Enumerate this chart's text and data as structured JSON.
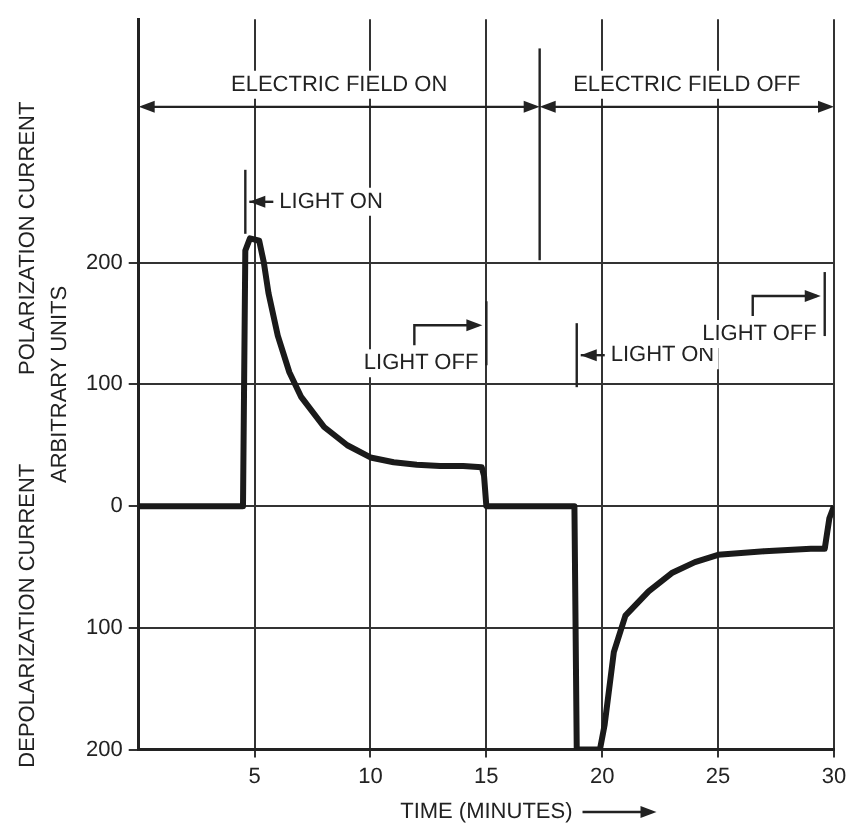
{
  "chart_data": {
    "type": "line",
    "xlabel": "TIME (MINUTES)",
    "ylabel": "ARBITRARY UNITS",
    "annotations": [
      "POLARIZATION CURRENT",
      "DEPOLARIZATION CURRENT",
      "ELECTRIC FIELD ON",
      "ELECTRIC FIELD OFF"
    ],
    "ref_lines": [
      {
        "axis": "x",
        "value": 17.3
      },
      {
        "axis": "x",
        "value": 4.6,
        "label": "LIGHT ON"
      },
      {
        "axis": "x",
        "value": 15,
        "label": "LIGHT OFF"
      },
      {
        "axis": "x",
        "value": 18.9,
        "label": "LIGHT ON"
      },
      {
        "axis": "x",
        "value": 29.6,
        "label": "LIGHT OFF"
      }
    ],
    "series": [
      {
        "color": "#1a1a1a",
        "x": [
          0,
          4.5,
          4.6,
          4.8,
          5.2,
          5.4,
          5.6,
          6,
          6.5,
          7,
          8,
          9,
          10,
          11,
          12,
          13,
          14,
          14.8,
          14.9,
          15,
          18.8,
          18.9,
          19.9,
          20.1,
          20.5,
          21,
          22,
          23,
          24,
          25,
          27,
          29,
          29.6,
          29.8,
          30
        ],
        "values": [
          0,
          0,
          210,
          220,
          218,
          200,
          175,
          140,
          110,
          90,
          65,
          50,
          40,
          36,
          34,
          33,
          33,
          32,
          25,
          0,
          0,
          -200,
          -200,
          -180,
          -120,
          -90,
          -70,
          -55,
          -46,
          -40,
          -37,
          -35,
          -35,
          -10,
          0
        ]
      }
    ],
    "xlim": [
      0,
      30
    ],
    "xticks": [
      5,
      10,
      15,
      20,
      25,
      30
    ],
    "ylim": [
      -200,
      400
    ],
    "yticks": [
      {
        "value": -200,
        "label": "200"
      },
      {
        "value": -100,
        "label": "100"
      },
      0,
      100,
      200
    ],
    "grid": true,
    "legend": false,
    "marker": "none",
    "line_style": "solid"
  }
}
